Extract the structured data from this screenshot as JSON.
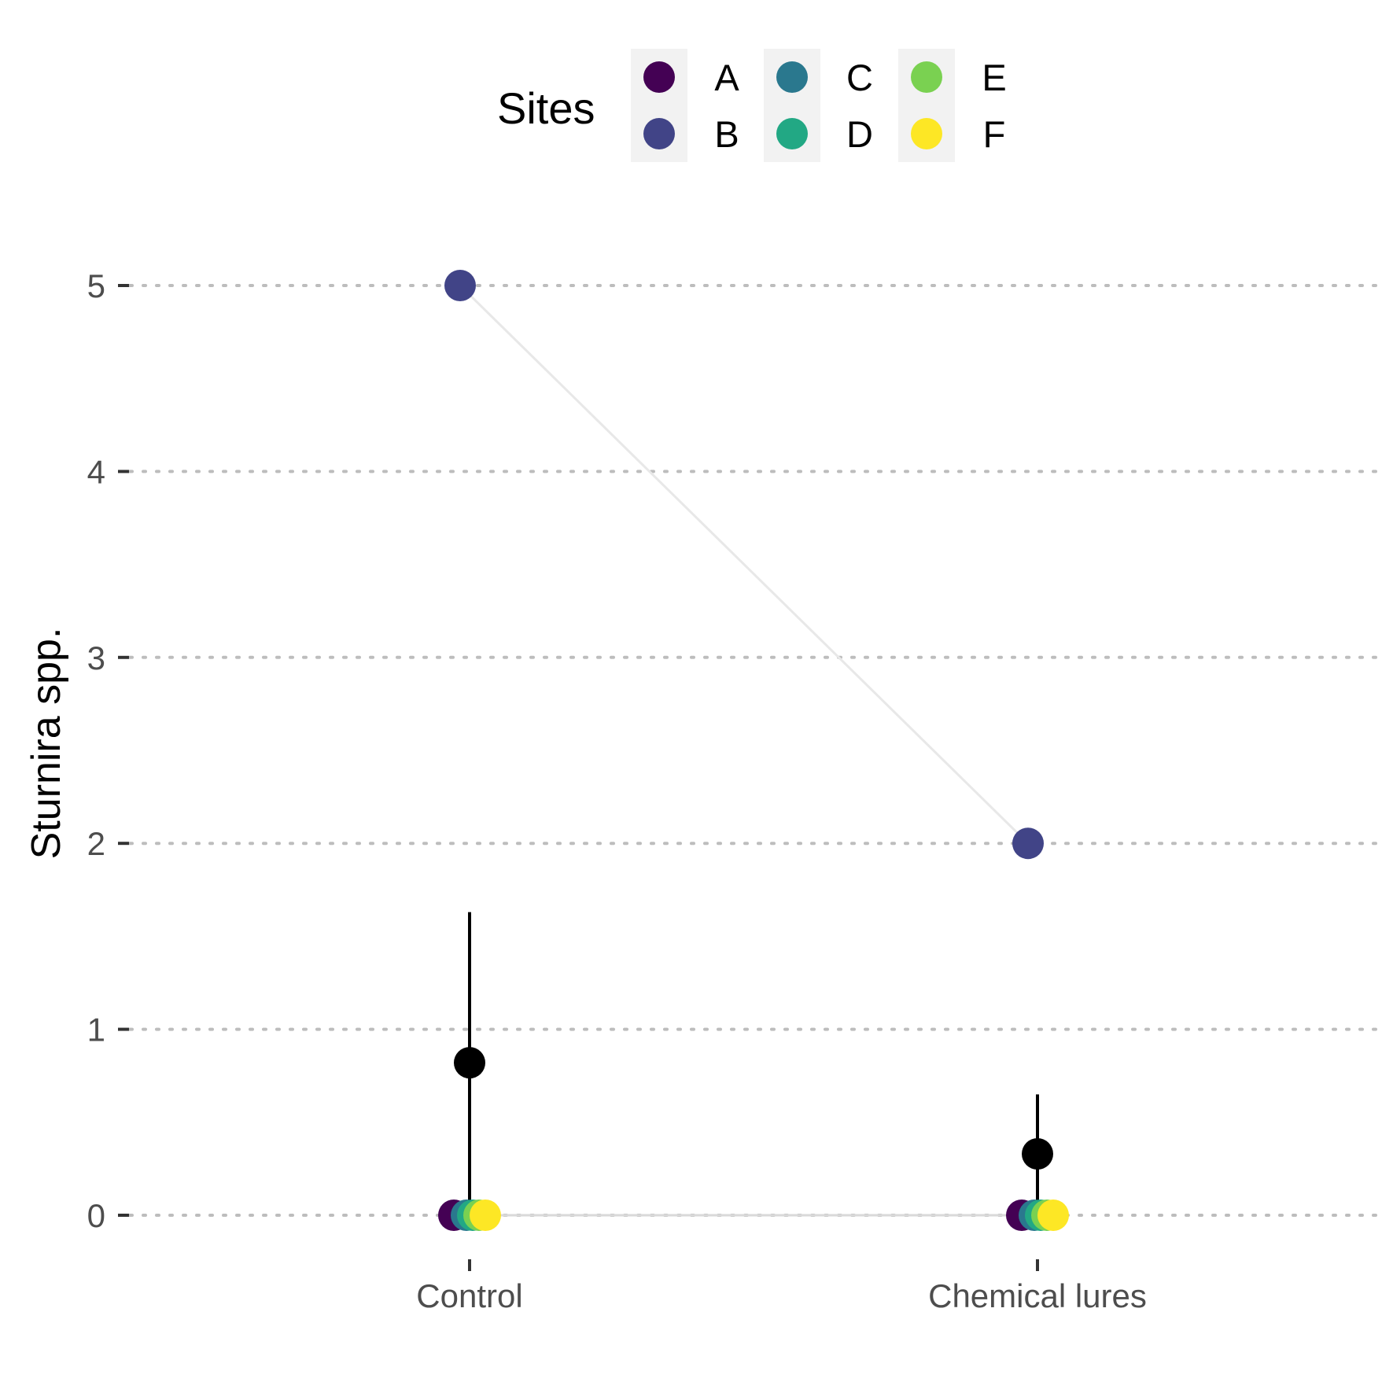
{
  "chart_data": {
    "type": "scatter",
    "ylabel": "Sturnira spp.",
    "xlabel": "",
    "categories": [
      "Control",
      "Chemical lures"
    ],
    "ylim": [
      -0.17,
      5.42
    ],
    "yticks": [
      0,
      1,
      2,
      3,
      4,
      5
    ],
    "grid": "horizontal dotted",
    "legend": {
      "title": "Sites",
      "placement": "top",
      "entries": [
        "A",
        "B",
        "C",
        "D",
        "E",
        "F"
      ]
    },
    "series": [
      {
        "name": "A",
        "color": "#440154",
        "values": [
          0,
          0
        ]
      },
      {
        "name": "B",
        "color": "#414487",
        "values": [
          5,
          2
        ]
      },
      {
        "name": "C",
        "color": "#2A788E",
        "values": [
          0,
          0
        ]
      },
      {
        "name": "D",
        "color": "#22A884",
        "values": [
          0,
          0
        ]
      },
      {
        "name": "E",
        "color": "#7AD151",
        "values": [
          0,
          0
        ]
      },
      {
        "name": "F",
        "color": "#FDE725",
        "values": [
          0,
          0
        ]
      }
    ],
    "summary": [
      {
        "category": "Control",
        "mean": 0.82,
        "lower": 0,
        "upper": 1.63
      },
      {
        "category": "Chemical lures",
        "mean": 0.33,
        "lower": 0,
        "upper": 0.65
      }
    ]
  }
}
